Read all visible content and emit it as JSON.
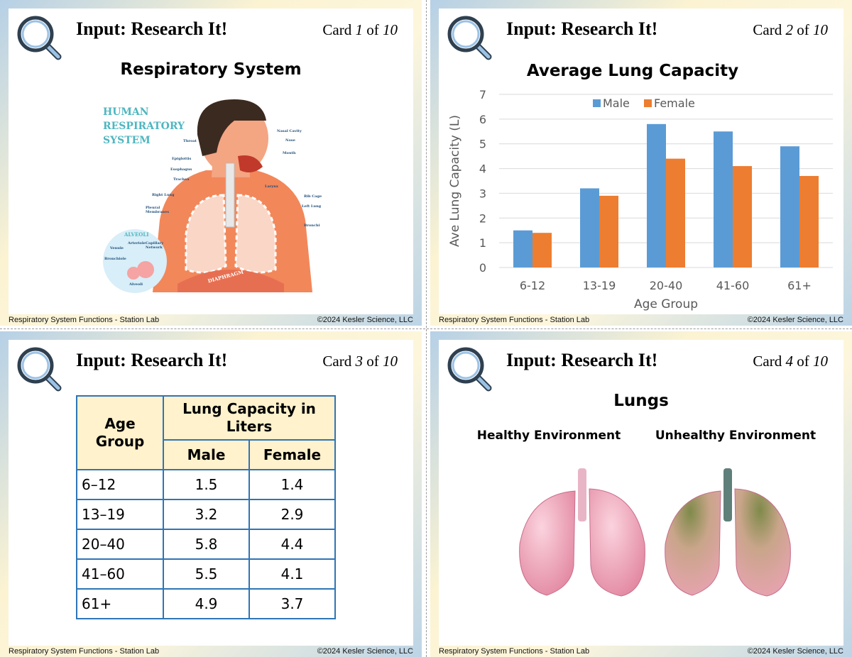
{
  "cards": [
    {
      "header": {
        "title": "Input: Research It!",
        "card_word": "Card",
        "number": 1,
        "of_word": "of",
        "total": 10
      },
      "heading": "Respiratory System",
      "illustration": {
        "title": "HUMAN RESPIRATORY SYSTEM",
        "labels": [
          "Throat",
          "Nasal Cavity",
          "Nose",
          "Mouth",
          "Epiglottis",
          "Esophagus",
          "Trachea",
          "Larynx",
          "Right Lung",
          "Rib Cage",
          "Left Lung",
          "Pleural Membranes",
          "Bronchi",
          "ALVEOLI",
          "Venule",
          "Arteriole",
          "Capillary Network",
          "Bronchiole",
          "Alveoli",
          "DIAPHRAGM"
        ]
      },
      "footer": {
        "left": "Respiratory System Functions - Station Lab",
        "right": "©2024 Kesler Science, LLC"
      }
    },
    {
      "header": {
        "title": "Input: Research It!",
        "card_word": "Card",
        "number": 2,
        "of_word": "of",
        "total": 10
      },
      "chart_data": {
        "type": "bar",
        "title": "Average Lung Capacity",
        "y_label": "Ave Lung Capacity (L)",
        "x_label": "Age Group",
        "categories": [
          "6-12",
          "13-19",
          "20-40",
          "41-60",
          "61+"
        ],
        "series": [
          {
            "name": "Male",
            "color": "#5b9bd5",
            "values": [
              1.5,
              3.2,
              5.8,
              5.5,
              4.9
            ]
          },
          {
            "name": "Female",
            "color": "#ed7d31",
            "values": [
              1.4,
              2.9,
              4.4,
              4.1,
              3.7
            ]
          }
        ],
        "ylim": [
          0,
          7
        ],
        "yticks": [
          0,
          1,
          2,
          3,
          4,
          5,
          6,
          7
        ],
        "grid": true,
        "legend": "top"
      },
      "footer": {
        "left": "Respiratory System Functions - Station Lab",
        "right": "©2024 Kesler Science, LLC"
      }
    },
    {
      "header": {
        "title": "Input: Research It!",
        "card_word": "Card",
        "number": 3,
        "of_word": "of",
        "total": 10
      },
      "table": {
        "header": [
          "Age Group",
          "Lung Capacity in Liters"
        ],
        "subheader": [
          "Male",
          "Female"
        ],
        "rows": [
          [
            "6–12",
            1.5,
            1.4
          ],
          [
            "13–19",
            3.2,
            2.9
          ],
          [
            "20–40",
            5.8,
            4.4
          ],
          [
            "41–60",
            5.5,
            4.1
          ],
          [
            "61+",
            4.9,
            3.7
          ]
        ]
      },
      "footer": {
        "left": "Respiratory System Functions - Station Lab",
        "right": "©2024 Kesler Science, LLC"
      }
    },
    {
      "header": {
        "title": "Input: Research It!",
        "card_word": "Card",
        "number": 4,
        "of_word": "of",
        "total": 10
      },
      "heading": "Lungs",
      "panels": [
        "Healthy Environment",
        "Unhealthy Environment"
      ],
      "footer": {
        "left": "Respiratory System Functions - Station Lab",
        "right": "©2024 Kesler Science, LLC"
      }
    }
  ]
}
